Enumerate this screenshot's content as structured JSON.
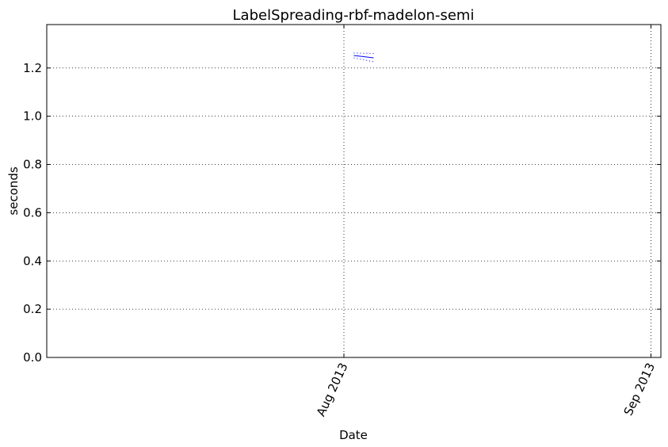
{
  "chart_data": {
    "type": "line",
    "title": "LabelSpreading-rbf-madelon-semi",
    "xlabel": "Date",
    "ylabel": "seconds",
    "x_range": [
      "2013-07-02",
      "2013-09-02"
    ],
    "ylim": [
      0.0,
      1.38
    ],
    "y_ticks": [
      0.0,
      0.2,
      0.4,
      0.6,
      0.8,
      1.0,
      1.2
    ],
    "y_tick_labels": [
      "0.0",
      "0.2",
      "0.4",
      "0.6",
      "0.8",
      "1.0",
      "1.2"
    ],
    "x_ticks": [
      "2013-08-01",
      "2013-09-01"
    ],
    "x_tick_labels": [
      "Aug 2013",
      "Sep 2013"
    ],
    "grid": true,
    "series": [
      {
        "style": "solid",
        "color": "#0000ff",
        "x": [
          "2013-08-02",
          "2013-08-04"
        ],
        "y": [
          1.252,
          1.242
        ]
      },
      {
        "style": "dotted",
        "color": "#0000ff",
        "x": [
          "2013-08-02",
          "2013-08-04"
        ],
        "y": [
          1.262,
          1.26
        ]
      },
      {
        "style": "dotted",
        "color": "#0000ff",
        "x": [
          "2013-08-02",
          "2013-08-04"
        ],
        "y": [
          1.242,
          1.226
        ]
      }
    ]
  }
}
